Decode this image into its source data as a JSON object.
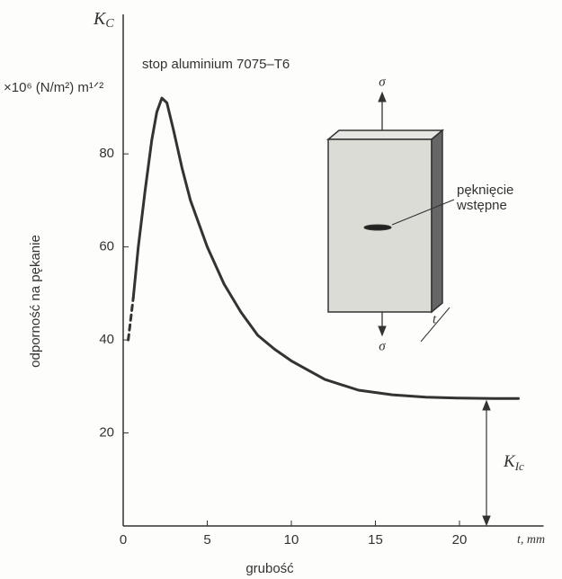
{
  "chart_data": {
    "type": "line",
    "title": "stop aluminium 7075–T6",
    "y_symbol": {
      "main": "K",
      "sub": "C"
    },
    "y_unit": "×10⁶ (N/m²) m¹ᐟ²",
    "y_label": "odporność na pękanie",
    "x_label": "grubość",
    "x_unit": "t, mm",
    "xlim": [
      0,
      25
    ],
    "ylim": [
      0,
      110
    ],
    "xticks": [
      0,
      5,
      10,
      15,
      20
    ],
    "yticks": [
      20,
      40,
      60,
      80
    ],
    "series": [
      {
        "style": "dashed",
        "color": "#333333",
        "x": [
          0.3,
          0.6
        ],
        "values": [
          40,
          49
        ]
      },
      {
        "style": "solid",
        "color": "#333333",
        "x": [
          0.6,
          0.9,
          1.3,
          1.7,
          2.0,
          2.3,
          2.6,
          3.0,
          3.5,
          4,
          5,
          6,
          7,
          8,
          9,
          10,
          12,
          14,
          16,
          18,
          20,
          22,
          23.5
        ],
        "values": [
          49,
          60,
          72,
          83,
          89,
          92,
          91,
          85,
          77,
          70,
          60,
          52,
          46,
          41,
          38,
          35.5,
          31.5,
          29.2,
          28.2,
          27.7,
          27.5,
          27.4,
          27.4
        ]
      }
    ],
    "specimen": {
      "stress": "σ",
      "crack": [
        "pęknięcie",
        "wstępne"
      ],
      "thickness": "t"
    },
    "plateau_label": {
      "main": "K",
      "sub": "Ic"
    }
  }
}
